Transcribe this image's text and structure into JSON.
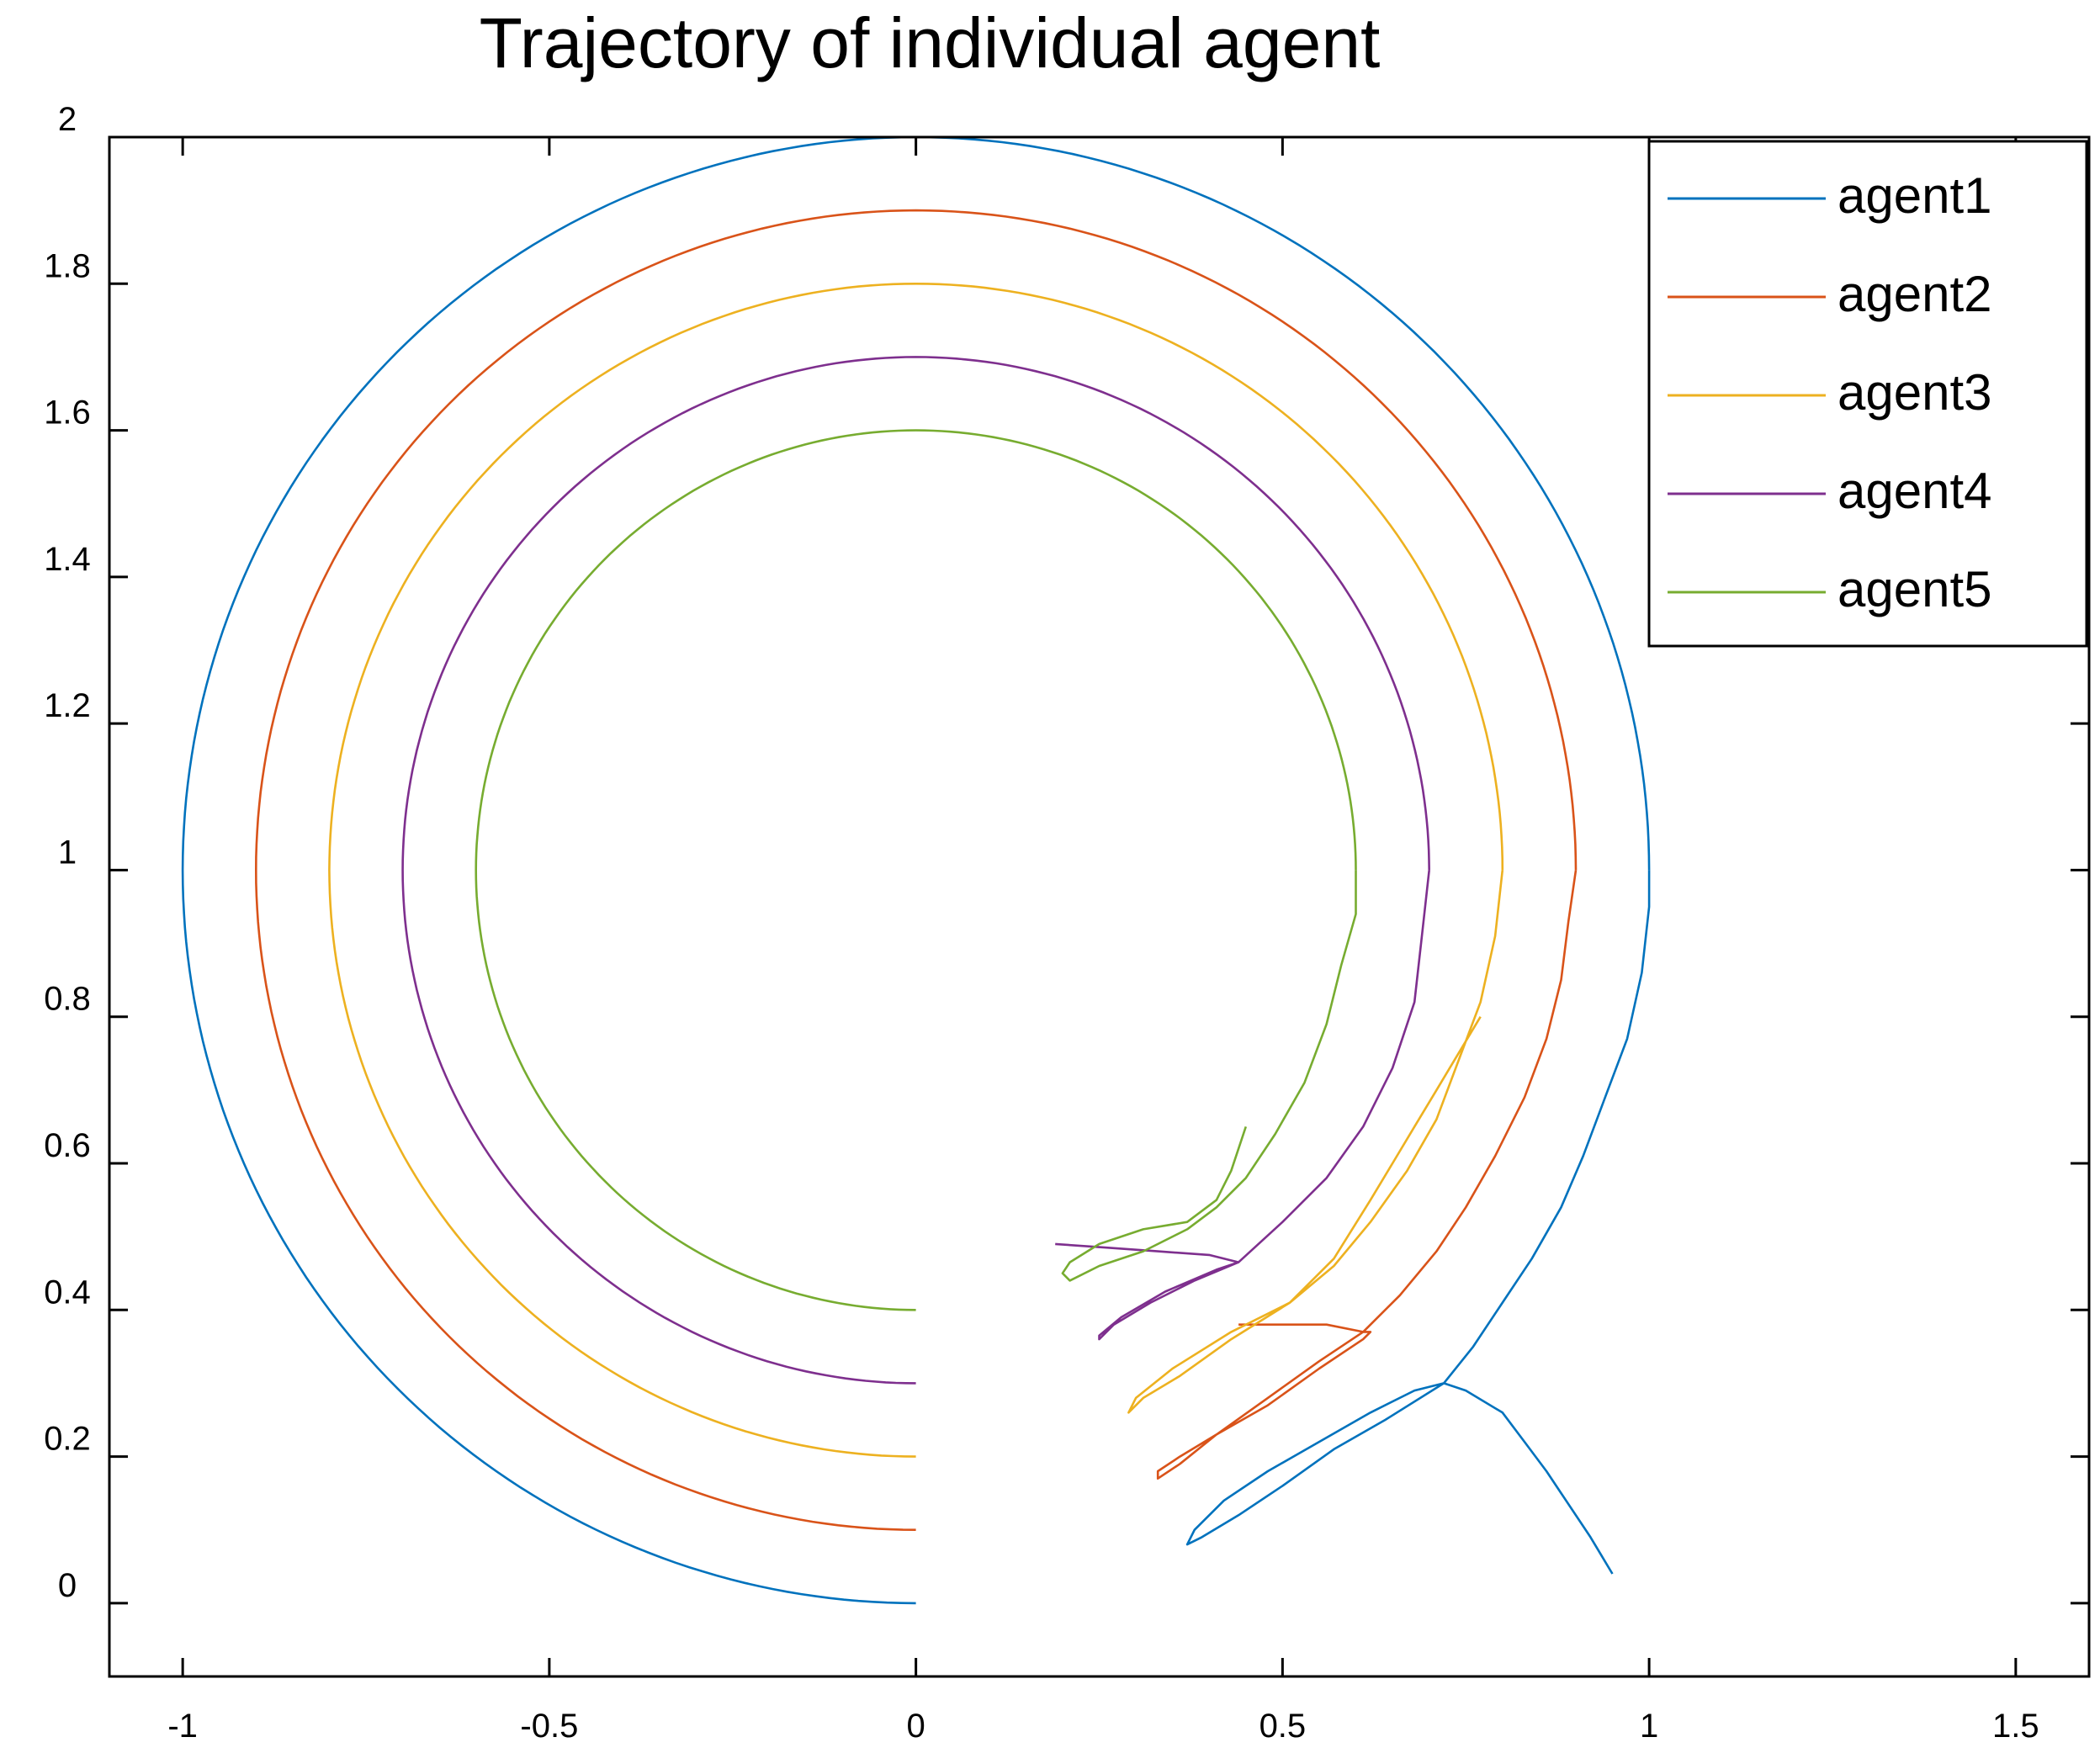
{
  "chart_data": {
    "type": "line",
    "title": "Trajectory of individual agent",
    "xlabel": "",
    "ylabel": "",
    "xlim": [
      -1.1,
      1.6
    ],
    "ylim": [
      -0.1,
      2.0
    ],
    "xticks": [
      -1,
      -0.5,
      0,
      0.5,
      1,
      1.5
    ],
    "xtick_labels": [
      "-1",
      "-0.5",
      "0",
      "0.5",
      "1",
      "1.5"
    ],
    "yticks": [
      0,
      0.2,
      0.4,
      0.6,
      0.8,
      1,
      1.2,
      1.4,
      1.6,
      1.8,
      2
    ],
    "ytick_labels": [
      "0",
      "0.2",
      "0.4",
      "0.6",
      "0.8",
      "1",
      "1.2",
      "1.4",
      "1.6",
      "1.8",
      "2"
    ],
    "grid": false,
    "legend_position": "top-right",
    "series": [
      {
        "name": "agent1",
        "color": "#0072BD",
        "circle": {
          "cx": 0,
          "cy": 1,
          "r": 1.0
        },
        "points": [
          [
            0.95,
            0.04
          ],
          [
            0.92,
            0.09
          ],
          [
            0.88,
            0.15
          ],
          [
            0.86,
            0.18
          ],
          [
            0.83,
            0.22
          ],
          [
            0.8,
            0.26
          ],
          [
            0.75,
            0.29
          ],
          [
            0.72,
            0.3
          ],
          [
            0.68,
            0.29
          ],
          [
            0.62,
            0.26
          ],
          [
            0.55,
            0.22
          ],
          [
            0.48,
            0.18
          ],
          [
            0.42,
            0.14
          ],
          [
            0.38,
            0.1
          ],
          [
            0.37,
            0.08
          ],
          [
            0.39,
            0.09
          ],
          [
            0.44,
            0.12
          ],
          [
            0.5,
            0.16
          ],
          [
            0.57,
            0.21
          ],
          [
            0.64,
            0.25
          ],
          [
            0.72,
            0.3
          ],
          [
            0.76,
            0.35
          ],
          [
            0.8,
            0.41
          ],
          [
            0.84,
            0.47
          ],
          [
            0.88,
            0.54
          ],
          [
            0.91,
            0.61
          ],
          [
            0.94,
            0.69
          ],
          [
            0.97,
            0.77
          ],
          [
            0.99,
            0.86
          ],
          [
            1.0,
            0.95
          ],
          [
            1.0,
            1.0
          ]
        ]
      },
      {
        "name": "agent2",
        "color": "#D95319",
        "circle": {
          "cx": 0,
          "cy": 1,
          "r": 0.9
        },
        "points": [
          [
            0.44,
            0.38
          ],
          [
            0.5,
            0.38
          ],
          [
            0.56,
            0.38
          ],
          [
            0.61,
            0.37
          ],
          [
            0.62,
            0.37
          ],
          [
            0.61,
            0.36
          ],
          [
            0.55,
            0.32
          ],
          [
            0.48,
            0.27
          ],
          [
            0.41,
            0.23
          ],
          [
            0.36,
            0.2
          ],
          [
            0.33,
            0.18
          ],
          [
            0.33,
            0.17
          ],
          [
            0.36,
            0.19
          ],
          [
            0.41,
            0.23
          ],
          [
            0.48,
            0.28
          ],
          [
            0.55,
            0.33
          ],
          [
            0.61,
            0.37
          ],
          [
            0.66,
            0.42
          ],
          [
            0.71,
            0.48
          ],
          [
            0.75,
            0.54
          ],
          [
            0.79,
            0.61
          ],
          [
            0.83,
            0.69
          ],
          [
            0.86,
            0.77
          ],
          [
            0.88,
            0.85
          ],
          [
            0.89,
            0.93
          ],
          [
            0.9,
            1.0
          ]
        ]
      },
      {
        "name": "agent3",
        "color": "#EDB120",
        "circle": {
          "cx": 0,
          "cy": 1,
          "r": 0.8
        },
        "points": [
          [
            0.77,
            0.8
          ],
          [
            0.74,
            0.75
          ],
          [
            0.71,
            0.7
          ],
          [
            0.68,
            0.65
          ],
          [
            0.65,
            0.6
          ],
          [
            0.62,
            0.55
          ],
          [
            0.57,
            0.47
          ],
          [
            0.51,
            0.41
          ],
          [
            0.43,
            0.36
          ],
          [
            0.36,
            0.31
          ],
          [
            0.31,
            0.28
          ],
          [
            0.29,
            0.26
          ],
          [
            0.3,
            0.28
          ],
          [
            0.35,
            0.32
          ],
          [
            0.43,
            0.37
          ],
          [
            0.51,
            0.41
          ],
          [
            0.57,
            0.46
          ],
          [
            0.62,
            0.52
          ],
          [
            0.67,
            0.59
          ],
          [
            0.71,
            0.66
          ],
          [
            0.74,
            0.74
          ],
          [
            0.77,
            0.82
          ],
          [
            0.79,
            0.91
          ],
          [
            0.8,
            1.0
          ]
        ]
      },
      {
        "name": "agent4",
        "color": "#7E2F8E",
        "circle": {
          "cx": 0,
          "cy": 1,
          "r": 0.7
        },
        "points": [
          [
            0.19,
            0.49
          ],
          [
            0.26,
            0.485
          ],
          [
            0.33,
            0.48
          ],
          [
            0.4,
            0.475
          ],
          [
            0.44,
            0.465
          ],
          [
            0.41,
            0.455
          ],
          [
            0.34,
            0.425
          ],
          [
            0.28,
            0.39
          ],
          [
            0.25,
            0.365
          ],
          [
            0.25,
            0.36
          ],
          [
            0.27,
            0.38
          ],
          [
            0.32,
            0.41
          ],
          [
            0.38,
            0.44
          ],
          [
            0.44,
            0.465
          ],
          [
            0.5,
            0.52
          ],
          [
            0.56,
            0.58
          ],
          [
            0.61,
            0.65
          ],
          [
            0.65,
            0.73
          ],
          [
            0.68,
            0.82
          ],
          [
            0.69,
            0.91
          ],
          [
            0.7,
            1.0
          ]
        ]
      },
      {
        "name": "agent5",
        "color": "#77AC30",
        "circle": {
          "cx": 0,
          "cy": 1,
          "r": 0.6
        },
        "points": [
          [
            0.45,
            0.65
          ],
          [
            0.43,
            0.59
          ],
          [
            0.41,
            0.55
          ],
          [
            0.37,
            0.52
          ],
          [
            0.31,
            0.51
          ],
          [
            0.25,
            0.49
          ],
          [
            0.21,
            0.465
          ],
          [
            0.2,
            0.45
          ],
          [
            0.21,
            0.44
          ],
          [
            0.25,
            0.46
          ],
          [
            0.31,
            0.48
          ],
          [
            0.37,
            0.51
          ],
          [
            0.41,
            0.54
          ],
          [
            0.45,
            0.58
          ],
          [
            0.49,
            0.64
          ],
          [
            0.53,
            0.71
          ],
          [
            0.56,
            0.79
          ],
          [
            0.58,
            0.87
          ],
          [
            0.6,
            0.94
          ],
          [
            0.6,
            1.0
          ]
        ]
      }
    ]
  }
}
